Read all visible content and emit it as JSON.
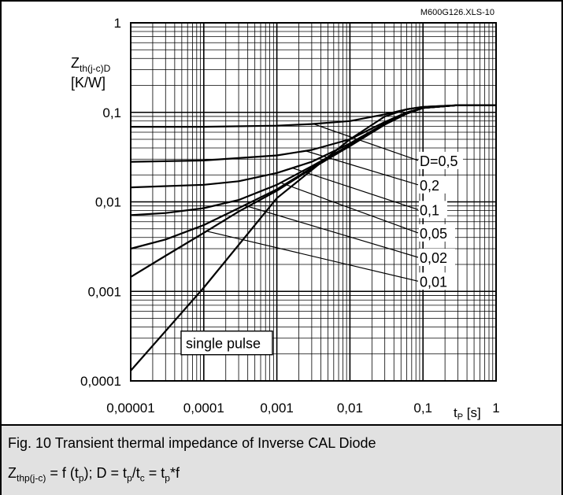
{
  "chart_data": {
    "type": "line",
    "source_label": "M600G126.XLS-10",
    "xscale": "log",
    "yscale": "log",
    "xlim": [
      1e-05,
      1
    ],
    "ylim": [
      0.0001,
      1
    ],
    "grid": true,
    "x_ticks": [
      "0,00001",
      "0,0001",
      "0,001",
      "0,01",
      "0,1",
      "1"
    ],
    "y_ticks": [
      "0,0001",
      "0,001",
      "0,01",
      "0,1",
      "1"
    ],
    "ylabel": {
      "main": "Z",
      "sub": "th(j-c)D",
      "unit": "[K/W]"
    },
    "xlabel": {
      "main": "t",
      "sub": "P",
      "unit": " [s]"
    },
    "series": [
      {
        "name": "D=0,5",
        "x": [
          1e-05,
          0.0001,
          0.001,
          0.003,
          0.01,
          0.03,
          0.06,
          0.1,
          0.3,
          1
        ],
        "y": [
          0.069,
          0.069,
          0.071,
          0.074,
          0.08,
          0.095,
          0.108,
          0.115,
          0.12,
          0.12
        ]
      },
      {
        "name": "0,2",
        "x": [
          1e-05,
          0.0001,
          0.001,
          0.003,
          0.01,
          0.03,
          0.06,
          0.1,
          0.3,
          1
        ],
        "y": [
          0.028,
          0.029,
          0.033,
          0.038,
          0.05,
          0.078,
          0.1,
          0.112,
          0.12,
          0.12
        ]
      },
      {
        "name": "0,1",
        "x": [
          1e-05,
          0.0001,
          0.0003,
          0.001,
          0.003,
          0.01,
          0.03,
          0.06,
          0.1,
          0.3,
          1
        ],
        "y": [
          0.0145,
          0.0155,
          0.017,
          0.021,
          0.028,
          0.045,
          0.075,
          0.098,
          0.112,
          0.12,
          0.12
        ]
      },
      {
        "name": "0,05",
        "x": [
          1e-05,
          3e-05,
          0.0001,
          0.0003,
          0.001,
          0.003,
          0.01,
          0.03,
          0.06,
          0.1,
          0.3,
          1
        ],
        "y": [
          0.0071,
          0.0075,
          0.0085,
          0.0105,
          0.0155,
          0.025,
          0.043,
          0.074,
          0.097,
          0.112,
          0.12,
          0.12
        ]
      },
      {
        "name": "0,02",
        "x": [
          1e-05,
          3e-05,
          0.0001,
          0.0003,
          0.001,
          0.003,
          0.01,
          0.03,
          0.06,
          0.1,
          0.3,
          1
        ],
        "y": [
          0.003,
          0.0038,
          0.0055,
          0.0085,
          0.0138,
          0.024,
          0.042,
          0.073,
          0.097,
          0.112,
          0.12,
          0.12
        ]
      },
      {
        "name": "0,01",
        "x": [
          1e-05,
          3e-05,
          0.0001,
          0.0003,
          0.001,
          0.003,
          0.01,
          0.03,
          0.06,
          0.1,
          0.3,
          1
        ],
        "y": [
          0.00145,
          0.0025,
          0.0045,
          0.0078,
          0.0133,
          0.0235,
          0.042,
          0.073,
          0.097,
          0.112,
          0.12,
          0.12
        ]
      },
      {
        "name": "single pulse",
        "x": [
          1e-05,
          0.0001,
          0.001,
          0.01,
          0.03,
          0.06,
          0.1,
          0.3,
          1
        ],
        "y": [
          0.00013,
          0.0011,
          0.011,
          0.05,
          0.09,
          0.108,
          0.115,
          0.12,
          0.12
        ]
      }
    ],
    "annotations": [
      {
        "text": "D=0,5",
        "series": "D=0,5",
        "at_x": 0.0032,
        "at_y": 0.074,
        "label_x": 0.09,
        "label_y": 0.029
      },
      {
        "text": "0,2",
        "series": "0,2",
        "at_x": 0.0025,
        "at_y": 0.037,
        "label_x": 0.09,
        "label_y": 0.0155
      },
      {
        "text": "0,1",
        "series": "0,1",
        "at_x": 0.0016,
        "at_y": 0.024,
        "label_x": 0.09,
        "label_y": 0.0082
      },
      {
        "text": "0,05",
        "series": "0,05",
        "at_x": 0.0011,
        "at_y": 0.0165,
        "label_x": 0.09,
        "label_y": 0.0045
      },
      {
        "text": "0,02",
        "series": "0,02",
        "at_x": 0.00035,
        "at_y": 0.0092,
        "label_x": 0.09,
        "label_y": 0.0024
      },
      {
        "text": "0,01",
        "series": "0,01",
        "at_x": 0.00011,
        "at_y": 0.0047,
        "label_x": 0.09,
        "label_y": 0.0013
      },
      {
        "text": "single pulse",
        "boxed": true,
        "label_x": 1e-05,
        "label_y": 0.0003
      }
    ]
  },
  "caption": {
    "title": "Fig. 10 Transient thermal impedance of Inverse CAL Diode",
    "formula": {
      "z": "Z",
      "z_sub": "thp(j-c)",
      "a": " = f (t",
      "p1": "p",
      "b": "); D = t",
      "p2": "p",
      "c": "/t",
      "c_sub": "c",
      "d": " = t",
      "p3": "p",
      "e": "*f"
    }
  }
}
